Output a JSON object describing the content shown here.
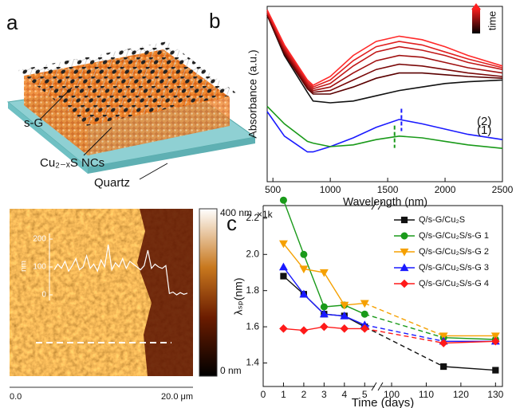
{
  "panel_labels": [
    "a",
    "b",
    "c"
  ],
  "diagram": {
    "labels": [
      "s-G",
      "Cu₂₋ₓS NCs",
      "Quartz"
    ]
  },
  "afm": {
    "colorbar_top": "400 nm",
    "colorbar_bottom": "0 nm",
    "scale_start": "0.0",
    "scale_end": "20.0 μm"
  },
  "chart_data": [
    {
      "type": "line",
      "xlabel": "Wavelength (nm)",
      "ylabel": "Absorbance (a.u.)",
      "legend_label": "time",
      "x": [
        450,
        600,
        800,
        850,
        1000,
        1200,
        1400,
        1600,
        1800,
        2000,
        2200,
        2500
      ],
      "xlim": [
        450,
        2500
      ],
      "xticks": [
        500,
        1000,
        1500,
        2000,
        2500
      ],
      "ylim": [
        0,
        10
      ],
      "series": [
        {
          "color": "#111111",
          "values": [
            9.5,
            7.2,
            5.1,
            4.6,
            4.5,
            4.6,
            4.9,
            5.2,
            5.4,
            5.6,
            5.7,
            5.8
          ]
        },
        {
          "color": "#5a0000",
          "values": [
            9.5,
            7.3,
            5.3,
            5.0,
            5.0,
            5.4,
            5.9,
            6.2,
            6.2,
            6.1,
            6.0,
            5.9
          ]
        },
        {
          "color": "#7a0808",
          "values": [
            9.6,
            7.4,
            5.4,
            5.1,
            5.2,
            5.8,
            6.4,
            6.7,
            6.6,
            6.4,
            6.2,
            6.0
          ]
        },
        {
          "color": "#a01010",
          "values": [
            9.6,
            7.5,
            5.5,
            5.2,
            5.4,
            6.2,
            6.9,
            7.2,
            7.1,
            6.8,
            6.5,
            6.2
          ]
        },
        {
          "color": "#c01818",
          "values": [
            9.7,
            7.6,
            5.6,
            5.3,
            5.6,
            6.6,
            7.4,
            7.7,
            7.5,
            7.2,
            6.8,
            6.4
          ]
        },
        {
          "color": "#e02020",
          "values": [
            9.7,
            7.7,
            5.7,
            5.4,
            5.8,
            6.9,
            7.7,
            8.0,
            7.8,
            7.4,
            7.0,
            6.5
          ]
        },
        {
          "color": "#ff2a2a",
          "values": [
            9.8,
            7.8,
            5.8,
            5.5,
            6.0,
            7.2,
            8.0,
            8.3,
            8.1,
            7.7,
            7.2,
            6.6
          ]
        },
        {
          "name": "(2)",
          "color": "#1a1aff",
          "peak": 1620,
          "values": [
            4.0,
            2.6,
            1.7,
            1.7,
            2.0,
            2.5,
            3.1,
            3.55,
            3.3,
            3.0,
            2.7,
            2.4
          ]
        },
        {
          "name": "(1)",
          "color": "#1a9a1a",
          "peak": 1560,
          "values": [
            4.3,
            3.3,
            2.3,
            2.2,
            2.0,
            2.1,
            2.4,
            2.6,
            2.5,
            2.3,
            2.1,
            1.9
          ]
        }
      ]
    },
    {
      "type": "line",
      "xlabel": "Time (days)",
      "ylabel": "λₛₚ(nm)",
      "y_multiplier": "×1k",
      "x": [
        1,
        2,
        3,
        4,
        5,
        115,
        130
      ],
      "xsegments": [
        [
          0,
          5.5
        ],
        [
          97,
          132
        ]
      ],
      "xticks": [
        0,
        1,
        2,
        3,
        4,
        5,
        100,
        110,
        120,
        130
      ],
      "ylim": [
        1.27,
        2.27
      ],
      "yticks": [
        1.4,
        1.6,
        1.8,
        {
          "value": 2,
          "label": "2.0"
        },
        2.2
      ],
      "series": [
        {
          "name": "Q/s-G/Cu₂S",
          "color": "#111111",
          "marker": "square",
          "values": [
            1.88,
            1.78,
            1.67,
            1.66,
            1.6,
            1.38,
            1.36
          ]
        },
        {
          "name": "Q/s-G/Cu₂S/s-G 1",
          "color": "#1a9a1a",
          "marker": "circle",
          "values": [
            2.3,
            2.0,
            1.71,
            1.72,
            1.67,
            1.54,
            1.53
          ]
        },
        {
          "name": "Q/s-G/Cu₂S/s-G 2",
          "color": "#f5a000",
          "marker": "triangle-down",
          "values": [
            2.06,
            1.92,
            1.9,
            1.72,
            1.73,
            1.55,
            1.55
          ]
        },
        {
          "name": "Q/s-G/Cu₂S/s-G 3",
          "color": "#1a1aff",
          "marker": "triangle-up",
          "values": [
            1.93,
            1.78,
            1.67,
            1.66,
            1.61,
            1.52,
            1.52
          ]
        },
        {
          "name": "Q/s-G/Cu₂S/s-G 4",
          "color": "#ff1a1a",
          "marker": "diamond",
          "values": [
            1.59,
            1.58,
            1.6,
            1.59,
            1.59,
            1.51,
            1.52
          ]
        }
      ]
    },
    {
      "type": "line",
      "ylabel": "nm",
      "ylim": [
        -20,
        220
      ],
      "yticks": [
        0,
        100,
        200
      ],
      "values": [
        90,
        110,
        95,
        120,
        85,
        105,
        130,
        90,
        100,
        140,
        95,
        110,
        85,
        125,
        100,
        180,
        90,
        115,
        100,
        130,
        95,
        120,
        110,
        100,
        90,
        105,
        160,
        95,
        110,
        100,
        95,
        105,
        5,
        10,
        0,
        8,
        2,
        6
      ]
    }
  ]
}
